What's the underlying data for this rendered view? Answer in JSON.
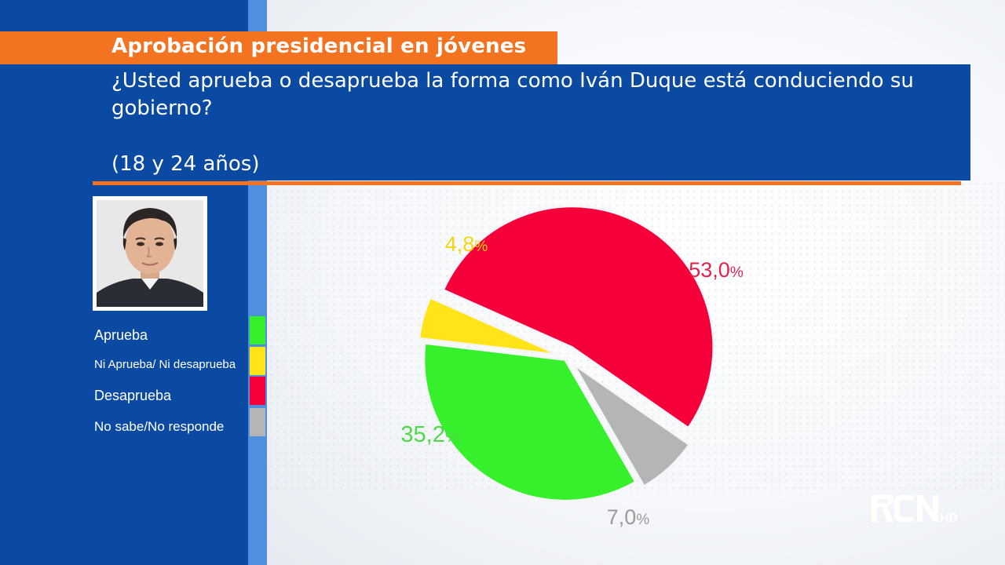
{
  "header": {
    "title": "Aprobación presidencial en jóvenes",
    "question": "¿Usted aprueba o desaprueba la forma como Iván Duque está conduciendo su gobierno?",
    "age_group": "(18 y 24 años)"
  },
  "photo": {
    "icon": "person-portrait-icon"
  },
  "legend": [
    {
      "label": "Aprueba",
      "color": "#35f02a"
    },
    {
      "label": "Ni Aprueba/ Ni desaprueba",
      "color": "#ffe41a"
    },
    {
      "label": "Desaprueba",
      "color": "#f5003a"
    },
    {
      "label": "No sabe/No responde",
      "color": "#b5b5b5"
    }
  ],
  "chart_data": {
    "type": "pie",
    "title": "Aprobación presidencial en jóvenes",
    "slices": [
      {
        "label": "Desaprueba",
        "value": 53.0,
        "display": "53,0",
        "color": "#f5003a",
        "label_color": "#e0234a"
      },
      {
        "label": "No sabe/No responde",
        "value": 7.0,
        "display": "7,0",
        "color": "#b5b5b5",
        "label_color": "#9a9a9a"
      },
      {
        "label": "Aprueba",
        "value": 35.2,
        "display": "35,2",
        "color": "#35f02a",
        "label_color": "#4fd84a"
      },
      {
        "label": "Ni Aprueba/ Ni desaprueba",
        "value": 4.8,
        "display": "4,8",
        "color": "#ffe41a",
        "label_color": "#f2d60e"
      }
    ],
    "unit": "%"
  },
  "logo": {
    "text": "RCN",
    "suffix": "HD"
  }
}
